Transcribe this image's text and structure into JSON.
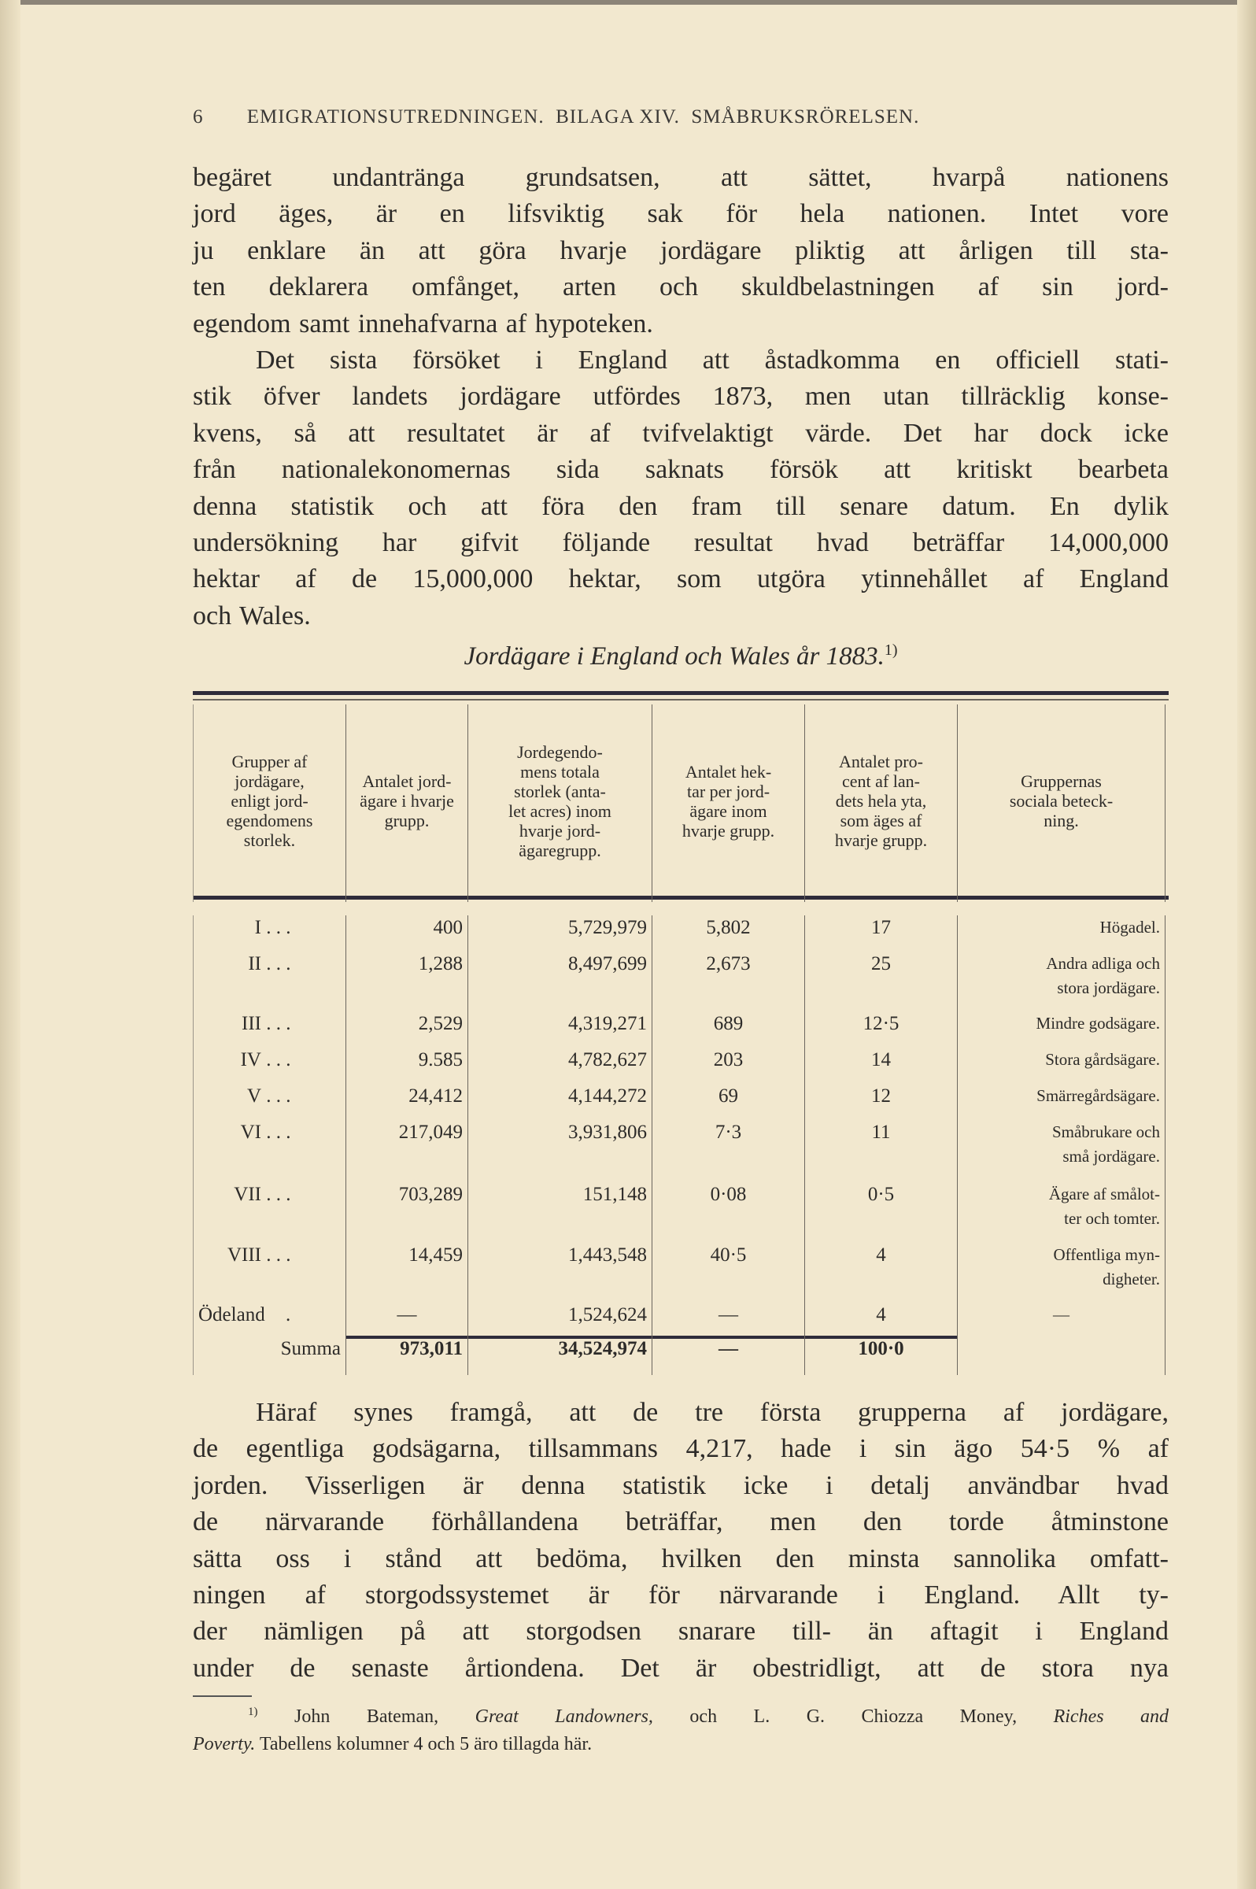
{
  "header": {
    "page_number": "6",
    "running_title": "EMIGRATIONSUTREDNINGEN.  BILAGA XIV.  SMÅBRUKSRÖRELSEN."
  },
  "paragraph1": [
    "begäret undantränga grundsatsen, att sättet, hvarpå nationens",
    "jord äges, är en lifsviktig sak för hela nationen. Intet vore",
    "ju enklare än att göra hvarje jordägare pliktig att årligen till sta-",
    "ten deklarera omfånget, arten och skuldbelastningen af sin jord-",
    "egendom samt innehafvarna af hypoteken."
  ],
  "paragraph2": [
    "Det sista försöket i England att åstadkomma en officiell stati-",
    "stik öfver landets jordägare utfördes 1873, men utan tillräcklig konse-",
    "kvens, så att resultatet är af tvifvelaktigt värde. Det har dock icke",
    "från nationalekonomernas sida saknats försök att kritiskt bearbeta",
    "denna statistik och att föra den fram till senare datum. En dylik",
    "undersökning har gifvit följande resultat hvad beträffar 14,000,000",
    "hektar af de 15,000,000 hektar, som utgöra ytinnehållet af England",
    "och Wales."
  ],
  "table": {
    "caption": "Jordägare i England och Wales år 1883.",
    "caption_note": "1)",
    "headers": [
      "Grupper af\njordägare,\nenligt jord-\negendomens\nstorlek.",
      "Antalet jord-\nägare i hvarje\ngrupp.",
      "Jordegendo-\nmens totala\nstorlek (anta-\nlet acres) inom\nhvarje jord-\nägaregrupp.",
      "Antalet hek-\ntar per jord-\nägare inom\nhvarje grupp.",
      "Antalet pro-\ncent af lan-\ndets hela yta,\nsom äges af\nhvarje grupp.",
      "Gruppernas\nsociala beteck-\nning."
    ],
    "rows": [
      {
        "group": "I",
        "owners": "400",
        "acres": "5,729,979",
        "hectares_per_owner": "5,802",
        "percent": "17",
        "social": "Högadel."
      },
      {
        "group": "II",
        "owners": "1,288",
        "acres": "8,497,699",
        "hectares_per_owner": "2,673",
        "percent": "25",
        "social": "Andra adliga och\nstora jordägare."
      },
      {
        "group": "III",
        "owners": "2,529",
        "acres": "4,319,271",
        "hectares_per_owner": "689",
        "percent": "12·5",
        "social": "Mindre godsägare."
      },
      {
        "group": "IV",
        "owners": "9.585",
        "acres": "4,782,627",
        "hectares_per_owner": "203",
        "percent": "14",
        "social": "Stora gårdsägare."
      },
      {
        "group": "V",
        "owners": "24,412",
        "acres": "4,144,272",
        "hectares_per_owner": "69",
        "percent": "12",
        "social": "Smärregårdsägare."
      },
      {
        "group": "VI",
        "owners": "217,049",
        "acres": "3,931,806",
        "hectares_per_owner": "7·3",
        "percent": "11",
        "social": "Småbrukare och\nsmå jordägare."
      },
      {
        "group": "VII",
        "owners": "703,289",
        "acres": "151,148",
        "hectares_per_owner": "0·08",
        "percent": "0·5",
        "social": "Ägare af smålot-\nter och tomter."
      },
      {
        "group": "VIII",
        "owners": "14,459",
        "acres": "1,443,548",
        "hectares_per_owner": "40·5",
        "percent": "4",
        "social": "Offentliga myn-\ndigheter."
      },
      {
        "group": "Ödeland",
        "owners": "—",
        "acres": "1,524,624",
        "hectares_per_owner": "—",
        "percent": "4",
        "social": "—"
      }
    ],
    "dots": ". . .",
    "odeland_dot": ".",
    "total": {
      "label": "Summa",
      "owners": "973,011",
      "acres": "34,524,974",
      "hectares_per_owner": "—",
      "percent": "100·0"
    }
  },
  "paragraph3": [
    "Häraf synes framgå, att de tre första grupperna af jordägare,",
    "de egentliga godsägarna, tillsammans 4,217, hade i sin ägo 54·5 % af",
    "jorden. Visserligen är denna statistik icke i detalj användbar hvad",
    "de närvarande förhållandena beträffar, men den torde åtminstone",
    "sätta oss i stånd att bedöma, hvilken den minsta sannolika omfatt-",
    "ningen af storgodssystemet är för närvarande i England. Allt ty-",
    "der nämligen på att storgodsen snarare till- än aftagit i England",
    "under de senaste årtiondena. Det är obestridligt, att de stora nya"
  ],
  "footnote": {
    "marker": "1)",
    "author1": "John Bateman,",
    "title1": "Great Landowners,",
    "mid": "och L. G. Chiozza Money,",
    "title2a": "Riches and",
    "title2b": "Poverty.",
    "rest": "Tabellens kolumner 4 och 5 äro tillagda här."
  }
}
